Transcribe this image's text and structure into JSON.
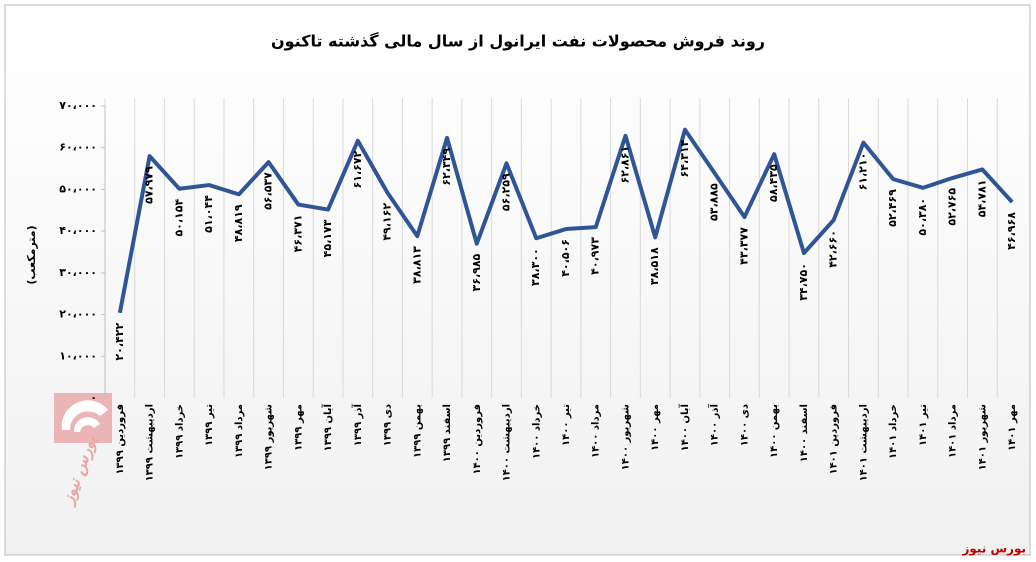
{
  "chart_data": {
    "type": "line",
    "title": "روند فروش محصولات نفت ایرانول از سال مالی گذشته تاکنون",
    "y_label": "(مترمکعب)",
    "source": "بورس نیوز",
    "watermark": "بورس نیوز",
    "categories": [
      "فروردین ۱۳۹۹",
      "اردیبهشت ۱۳۹۹",
      "خرداد ۱۳۹۹",
      "تیر ۱۳۹۹",
      "مرداد ۱۳۹۹",
      "شهریور ۱۳۹۹",
      "مهر ۱۳۹۹",
      "آبان ۱۳۹۹",
      "آذر ۱۳۹۹",
      "دی ۱۳۹۹",
      "بهمن ۱۳۹۹",
      "اسفند ۱۳۹۹",
      "فروردین ۱۴۰۰",
      "اردیبهشت ۱۴۰۰",
      "خرداد ۱۴۰۰",
      "تیر ۱۴۰۰",
      "مرداد ۱۴۰۰",
      "شهریور ۱۴۰۰",
      "مهر ۱۴۰۰",
      "آبان ۱۴۰۰",
      "آذر ۱۴۰۰",
      "دی ۱۴۰۰",
      "بهمن ۱۴۰۰",
      "اسفند ۱۴۰۰",
      "فروردین ۱۴۰۱",
      "اردیبهشت ۱۴۰۱",
      "خرداد ۱۴۰۱",
      "تیر ۱۴۰۱",
      "مرداد ۱۴۰۱",
      "شهریور ۱۴۰۱",
      "مهر ۱۴۰۱"
    ],
    "values": [
      20422,
      57979,
      50154,
      51044,
      48819,
      56537,
      46371,
      45173,
      61672,
      49162,
      38813,
      62349,
      36985,
      56259,
      38300,
      40506,
      40973,
      62861,
      38518,
      64314,
      53885,
      43377,
      58435,
      34750,
      42660,
      61210,
      52469,
      50380,
      52765,
      54781,
      46968
    ],
    "value_labels": [
      "۲۰،۴۲۲",
      "۵۷،۹۷۹",
      "۵۰،۱۵۴",
      "۵۱،۰۴۴",
      "۴۸،۸۱۹",
      "۵۶،۵۳۷",
      "۴۶،۳۷۱",
      "۴۵،۱۷۳",
      "۶۱،۶۷۲",
      "۴۹،۱۶۲",
      "۳۸،۸۱۳",
      "۶۲،۳۴۹",
      "۳۶،۹۸۵",
      "۵۶،۲۵۹",
      "۳۸،۳۰۰",
      "۴۰،۵۰۶",
      "۴۰،۹۷۳",
      "۶۲،۸۶۱",
      "۳۸،۵۱۸",
      "۶۴،۳۱۴",
      "۵۳،۸۸۵",
      "۴۳،۳۷۷",
      "۵۸،۴۳۵",
      "۳۴،۷۵۰",
      "۴۲،۶۶۰",
      "۶۱،۲۱۰",
      "۵۲،۴۶۹",
      "۵۰،۳۸۰",
      "۵۲،۷۶۵",
      "۵۴،۷۸۱",
      "۴۶،۹۶۸"
    ],
    "color": "#2f5597",
    "ylim": [
      0,
      70000
    ],
    "yticks": [
      {
        "value": 0,
        "label": "۰"
      },
      {
        "value": 10000,
        "label": "۱۰،۰۰۰"
      },
      {
        "value": 20000,
        "label": "۲۰،۰۰۰"
      },
      {
        "value": 30000,
        "label": "۳۰،۰۰۰"
      },
      {
        "value": 40000,
        "label": "۴۰،۰۰۰"
      },
      {
        "value": 50000,
        "label": "۵۰،۰۰۰"
      },
      {
        "value": 60000,
        "label": "۶۰،۰۰۰"
      },
      {
        "value": 70000,
        "label": "۷۰،۰۰۰"
      }
    ]
  }
}
